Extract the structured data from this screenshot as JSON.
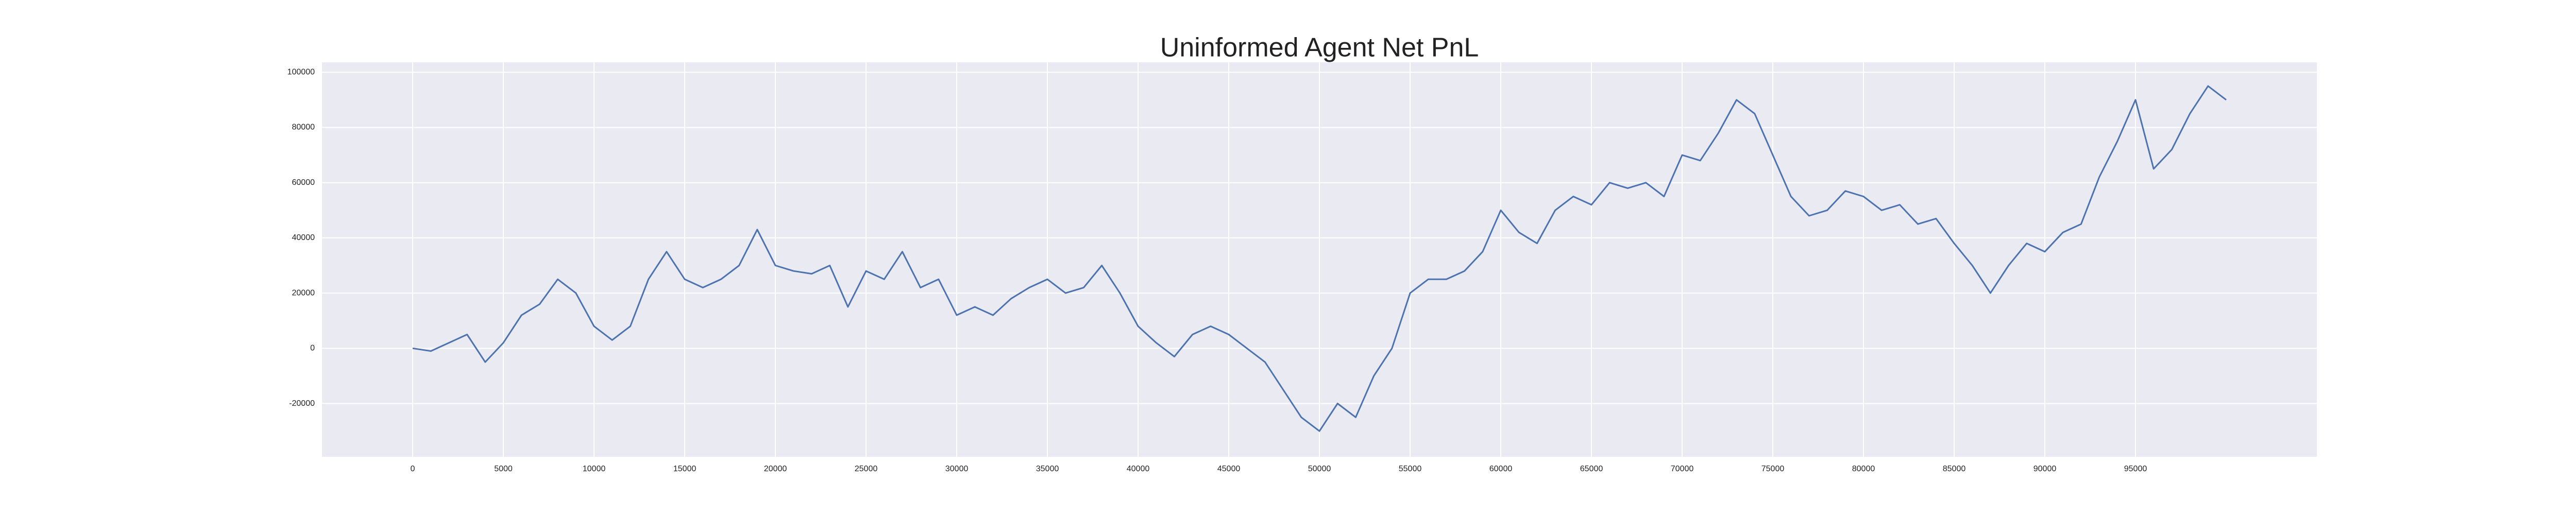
{
  "chart_data": {
    "type": "line",
    "title": "Uninformed Agent Net PnL",
    "x": [
      0,
      1000,
      2000,
      3000,
      4000,
      5000,
      6000,
      7000,
      8000,
      9000,
      10000,
      11000,
      12000,
      13000,
      14000,
      15000,
      16000,
      17000,
      18000,
      19000,
      20000,
      21000,
      22000,
      23000,
      24000,
      25000,
      26000,
      27000,
      28000,
      29000,
      30000,
      31000,
      32000,
      33000,
      34000,
      35000,
      36000,
      37000,
      38000,
      39000,
      40000,
      41000,
      42000,
      43000,
      44000,
      45000,
      46000,
      47000,
      48000,
      49000,
      50000,
      51000,
      52000,
      53000,
      54000,
      55000,
      56000,
      57000,
      58000,
      59000,
      60000,
      61000,
      62000,
      63000,
      64000,
      65000,
      66000,
      67000,
      68000,
      69000,
      70000,
      71000,
      72000,
      73000,
      74000,
      75000,
      76000,
      77000,
      78000,
      79000,
      80000,
      81000,
      82000,
      83000,
      84000,
      85000,
      86000,
      87000,
      88000,
      89000,
      90000,
      91000,
      92000,
      93000,
      94000,
      95000,
      96000,
      97000,
      98000,
      99000,
      100000
    ],
    "series": [
      {
        "name": "Net PnL",
        "color": "#4c72b0",
        "values": [
          0,
          -1000,
          2000,
          5000,
          -5000,
          2000,
          12000,
          16000,
          25000,
          20000,
          8000,
          3000,
          8000,
          25000,
          35000,
          25000,
          22000,
          25000,
          30000,
          43000,
          30000,
          28000,
          27000,
          30000,
          15000,
          28000,
          25000,
          35000,
          22000,
          25000,
          12000,
          15000,
          12000,
          18000,
          22000,
          25000,
          20000,
          22000,
          30000,
          20000,
          8000,
          2000,
          -3000,
          5000,
          8000,
          5000,
          0,
          -5000,
          -15000,
          -25000,
          -30000,
          -20000,
          -25000,
          -10000,
          0,
          20000,
          25000,
          25000,
          28000,
          35000,
          50000,
          42000,
          38000,
          50000,
          55000,
          52000,
          60000,
          58000,
          60000,
          55000,
          70000,
          68000,
          78000,
          90000,
          85000,
          70000,
          55000,
          48000,
          50000,
          57000,
          55000,
          50000,
          52000,
          45000,
          47000,
          38000,
          30000,
          20000,
          30000,
          38000,
          35000,
          42000,
          45000,
          62000,
          75000,
          90000,
          65000,
          72000,
          85000,
          95000,
          90000
        ]
      }
    ],
    "xlim": [
      -5000,
      105000
    ],
    "xticks": [
      0,
      5000,
      10000,
      15000,
      20000,
      25000,
      30000,
      35000,
      40000,
      45000,
      50000,
      55000,
      60000,
      65000,
      70000,
      75000,
      80000,
      85000,
      90000,
      95000
    ],
    "ylim": [
      -39300,
      103600
    ],
    "yticks": [
      -20000,
      0,
      20000,
      40000,
      60000,
      80000,
      100000
    ],
    "grid": true
  }
}
